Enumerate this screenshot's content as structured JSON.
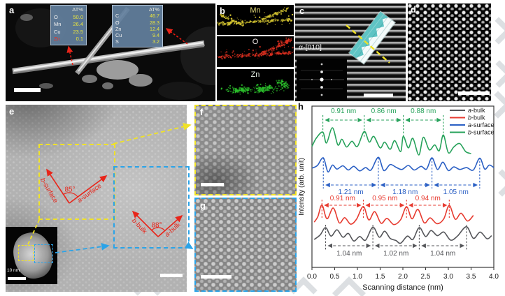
{
  "panel_a": {
    "label": "a",
    "eds_tables": {
      "left": {
        "header": "AT%",
        "rows": [
          {
            "element": "O",
            "value": "50.0"
          },
          {
            "element": "Mn",
            "value": "26.4"
          },
          {
            "element": "Cu",
            "value": "23.5"
          },
          {
            "element": "Zn",
            "value": "0.1",
            "highlight": "red"
          }
        ]
      },
      "right": {
        "header": "AT%",
        "rows": [
          {
            "element": "C",
            "value": "46.7"
          },
          {
            "element": "O",
            "value": "28.3"
          },
          {
            "element": "Zn",
            "value": "12.4"
          },
          {
            "element": "Cu",
            "value": "9.4"
          },
          {
            "element": "S",
            "value": "3.2"
          }
        ]
      }
    },
    "colors": {
      "table_bg": "#5f7f9e",
      "value_text": "#e9e43e",
      "highlight_text": "#f03022"
    }
  },
  "panel_b": {
    "label": "b",
    "maps": [
      {
        "element": "Mn",
        "label_color": "#e6dc7a",
        "dot_color": "#d8c832"
      },
      {
        "element": "O",
        "label_color": "#f0e8e6",
        "dot_color": "#e03020"
      },
      {
        "element": "Zn",
        "label_color": "#e8f2e8",
        "dot_color": "#2cc22c"
      }
    ]
  },
  "panel_c": {
    "label": "c",
    "zone_axis_label": "α-[010]"
  },
  "panel_d": {
    "label": "d"
  },
  "panel_e": {
    "label": "e",
    "surface": {
      "axis_b": "b-surface",
      "axis_a": "a-surface",
      "angle": "85°"
    },
    "bulk": {
      "axis_b": "b-bulk",
      "axis_a": "a-bulk",
      "angle": "88°"
    },
    "inset_scale_label": "10 nm"
  },
  "panel_f": {
    "label": "f"
  },
  "panel_g": {
    "label": "g"
  },
  "panel_h": {
    "label": "h"
  },
  "chart_data": {
    "type": "line",
    "xlabel": "Scanning distance (nm)",
    "ylabel": "Intensity (arb. unit)",
    "xlim": [
      0.0,
      4.0
    ],
    "xticks": [
      0.0,
      0.5,
      1.0,
      1.5,
      2.0,
      2.5,
      3.0,
      3.5,
      4.0
    ],
    "grid": false,
    "legend_position": "top-right",
    "series": [
      {
        "name": "a-bulk",
        "color": "#55565a",
        "peak_markers_nm": [
          0.3,
          1.34,
          2.36,
          3.4
        ],
        "spacing_labels": [
          "1.04 nm",
          "1.02 nm",
          "1.04 nm"
        ],
        "points": [
          [
            0.05,
            25
          ],
          [
            0.18,
            45
          ],
          [
            0.3,
            78
          ],
          [
            0.42,
            40
          ],
          [
            0.55,
            68
          ],
          [
            0.68,
            35
          ],
          [
            0.8,
            52
          ],
          [
            0.92,
            18
          ],
          [
            1.05,
            38
          ],
          [
            1.18,
            22
          ],
          [
            1.34,
            80
          ],
          [
            1.48,
            35
          ],
          [
            1.6,
            62
          ],
          [
            1.72,
            30
          ],
          [
            1.85,
            20
          ],
          [
            1.95,
            8
          ],
          [
            2.1,
            40
          ],
          [
            2.22,
            25
          ],
          [
            2.36,
            78
          ],
          [
            2.5,
            38
          ],
          [
            2.62,
            65
          ],
          [
            2.76,
            42
          ],
          [
            2.9,
            58
          ],
          [
            3.05,
            22
          ],
          [
            3.2,
            40
          ],
          [
            3.4,
            82
          ],
          [
            3.55,
            30
          ],
          [
            3.7,
            58
          ],
          [
            3.85,
            28
          ],
          [
            3.95,
            42
          ]
        ]
      },
      {
        "name": "b-bulk",
        "color": "#e73b30",
        "peak_markers_nm": [
          0.22,
          1.13,
          2.08,
          3.02
        ],
        "spacing_labels": [
          "0.91 nm",
          "0.95 nm",
          "0.94 nm"
        ],
        "points": [
          [
            0.05,
            15
          ],
          [
            0.13,
            40
          ],
          [
            0.22,
            92
          ],
          [
            0.33,
            30
          ],
          [
            0.47,
            78
          ],
          [
            0.6,
            12
          ],
          [
            0.72,
            35
          ],
          [
            0.85,
            6
          ],
          [
            0.98,
            28
          ],
          [
            1.13,
            85
          ],
          [
            1.25,
            25
          ],
          [
            1.38,
            62
          ],
          [
            1.52,
            10
          ],
          [
            1.65,
            32
          ],
          [
            1.8,
            4
          ],
          [
            1.95,
            26
          ],
          [
            2.08,
            84
          ],
          [
            2.2,
            30
          ],
          [
            2.33,
            72
          ],
          [
            2.47,
            12
          ],
          [
            2.6,
            34
          ],
          [
            2.75,
            8
          ],
          [
            2.9,
            30
          ],
          [
            3.02,
            90
          ],
          [
            3.15,
            28
          ],
          [
            3.28,
            55
          ],
          [
            3.42,
            20
          ],
          [
            3.55,
            45
          ]
        ]
      },
      {
        "name": "a-surface",
        "color": "#2a5fc4",
        "peak_markers_nm": [
          0.25,
          1.46,
          2.64,
          3.69
        ],
        "spacing_labels": [
          "1.21 nm",
          "1.18 nm",
          "1.05 nm"
        ],
        "points": [
          [
            0.0,
            35
          ],
          [
            0.12,
            50
          ],
          [
            0.25,
            92
          ],
          [
            0.35,
            15
          ],
          [
            0.45,
            52
          ],
          [
            0.55,
            30
          ],
          [
            0.68,
            48
          ],
          [
            0.8,
            25
          ],
          [
            0.92,
            45
          ],
          [
            1.05,
            20
          ],
          [
            1.18,
            38
          ],
          [
            1.3,
            25
          ],
          [
            1.46,
            95
          ],
          [
            1.58,
            22
          ],
          [
            1.72,
            55
          ],
          [
            1.85,
            40
          ],
          [
            1.98,
            28
          ],
          [
            2.12,
            50
          ],
          [
            2.25,
            25
          ],
          [
            2.4,
            45
          ],
          [
            2.52,
            30
          ],
          [
            2.64,
            92
          ],
          [
            2.76,
            28
          ],
          [
            2.88,
            68
          ],
          [
            3.0,
            22
          ],
          [
            3.12,
            42
          ],
          [
            3.25,
            28
          ],
          [
            3.4,
            38
          ],
          [
            3.55,
            25
          ],
          [
            3.69,
            90
          ],
          [
            3.8,
            30
          ],
          [
            3.9,
            52
          ],
          [
            4.0,
            38
          ]
        ]
      },
      {
        "name": "b-surface",
        "color": "#27a25b",
        "peak_markers_nm": [
          0.24,
          1.15,
          2.01,
          2.89
        ],
        "spacing_labels": [
          "0.91 nm",
          "0.86 nm",
          "0.88 nm"
        ],
        "points": [
          [
            0.0,
            30
          ],
          [
            0.1,
            60
          ],
          [
            0.24,
            80
          ],
          [
            0.32,
            42
          ],
          [
            0.45,
            95
          ],
          [
            0.57,
            35
          ],
          [
            0.66,
            55
          ],
          [
            0.76,
            28
          ],
          [
            0.88,
            48
          ],
          [
            1.0,
            30
          ],
          [
            1.15,
            82
          ],
          [
            1.26,
            45
          ],
          [
            1.36,
            65
          ],
          [
            1.5,
            25
          ],
          [
            1.6,
            45
          ],
          [
            1.72,
            20
          ],
          [
            1.82,
            50
          ],
          [
            1.95,
            12
          ],
          [
            2.01,
            65
          ],
          [
            2.12,
            25
          ],
          [
            2.22,
            58
          ],
          [
            2.35,
            0
          ],
          [
            2.45,
            62
          ],
          [
            2.58,
            18
          ],
          [
            2.7,
            35
          ],
          [
            2.8,
            15
          ],
          [
            2.89,
            70
          ],
          [
            3.0,
            8
          ],
          [
            3.12,
            28
          ],
          [
            3.25,
            40
          ],
          [
            3.38,
            12
          ],
          [
            3.5,
            5
          ]
        ]
      }
    ]
  }
}
